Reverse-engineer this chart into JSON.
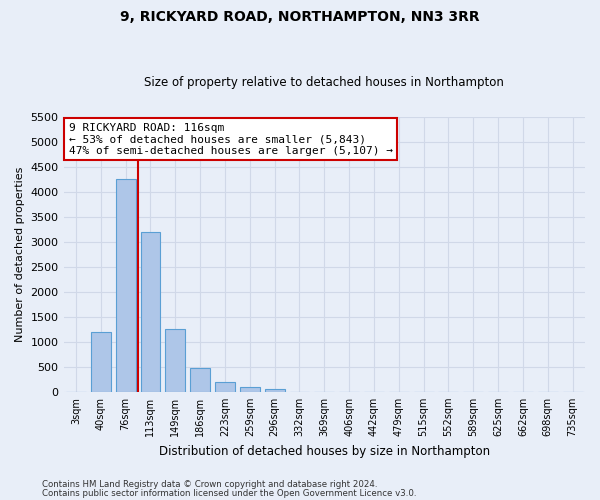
{
  "title": "9, RICKYARD ROAD, NORTHAMPTON, NN3 3RR",
  "subtitle": "Size of property relative to detached houses in Northampton",
  "xlabel": "Distribution of detached houses by size in Northampton",
  "ylabel": "Number of detached properties",
  "footer_line1": "Contains HM Land Registry data © Crown copyright and database right 2024.",
  "footer_line2": "Contains public sector information licensed under the Open Government Licence v3.0.",
  "categories": [
    "3sqm",
    "40sqm",
    "76sqm",
    "113sqm",
    "149sqm",
    "186sqm",
    "223sqm",
    "259sqm",
    "296sqm",
    "332sqm",
    "369sqm",
    "406sqm",
    "442sqm",
    "479sqm",
    "515sqm",
    "552sqm",
    "589sqm",
    "625sqm",
    "662sqm",
    "698sqm",
    "735sqm"
  ],
  "values": [
    0,
    1200,
    4250,
    3200,
    1250,
    475,
    200,
    90,
    60,
    0,
    0,
    0,
    0,
    0,
    0,
    0,
    0,
    0,
    0,
    0,
    0
  ],
  "bar_color": "#aec6e8",
  "bar_edge_color": "#5a9fd4",
  "grid_color": "#d0d8e8",
  "background_color": "#e8eef8",
  "vline_color": "#cc0000",
  "annotation_line1": "9 RICKYARD ROAD: 116sqm",
  "annotation_line2": "← 53% of detached houses are smaller (5,843)",
  "annotation_line3": "47% of semi-detached houses are larger (5,107) →",
  "annotation_box_color": "#ffffff",
  "annotation_box_edge_color": "#cc0000",
  "ylim": [
    0,
    5500
  ],
  "yticks": [
    0,
    500,
    1000,
    1500,
    2000,
    2500,
    3000,
    3500,
    4000,
    4500,
    5000,
    5500
  ]
}
